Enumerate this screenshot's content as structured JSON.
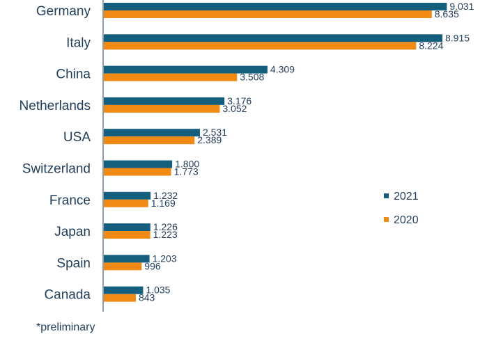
{
  "chart_data": {
    "type": "bar",
    "orientation": "horizontal",
    "categories": [
      "Germany",
      "Italy",
      "China",
      "Netherlands",
      "USA",
      "Switzerland",
      "France",
      "Japan",
      "Spain",
      "Canada"
    ],
    "series": [
      {
        "name": "2021",
        "color": "#155f7e",
        "values": [
          9031,
          8915,
          4309,
          3176,
          2531,
          1800,
          1232,
          1226,
          1203,
          1035
        ],
        "labels": [
          "9.031",
          "8.915",
          "4.309",
          "3.176",
          "2.531",
          "1.800",
          "1.232",
          "1.226",
          "1.203",
          "1.035"
        ]
      },
      {
        "name": "2020",
        "color": "#f08a13",
        "values": [
          8635,
          8224,
          3508,
          3052,
          2389,
          1773,
          1169,
          1223,
          996,
          843
        ],
        "labels": [
          "8.635",
          "8.224",
          "3.508",
          "3.052",
          "2.389",
          "1.773",
          "1.169",
          "1.223",
          "996",
          "843"
        ]
      }
    ],
    "xlim": [
      0,
      9300
    ],
    "legend_position": "right",
    "footnote": "*preliminary"
  }
}
